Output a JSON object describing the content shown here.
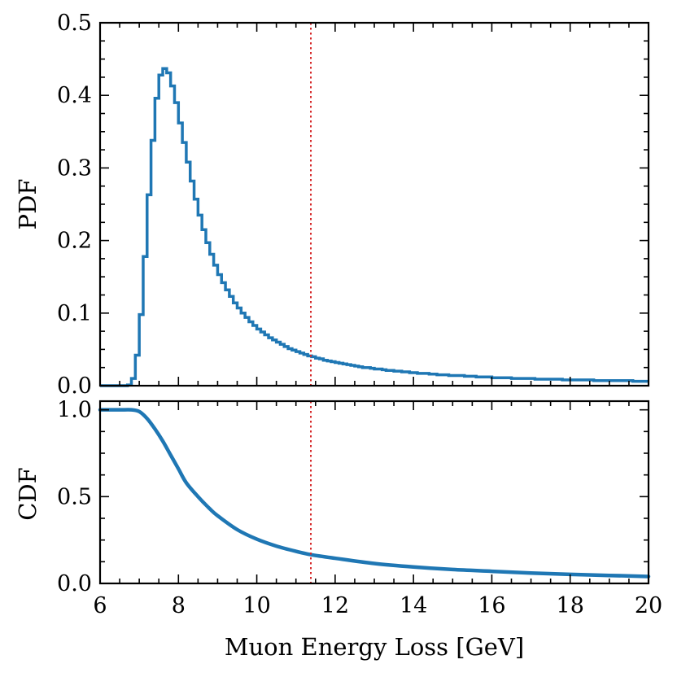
{
  "colors": {
    "series": "#1f77b4",
    "marker_line": "#d62728",
    "axes": "#000000"
  },
  "chart_data": [
    {
      "type": "line",
      "title": "",
      "xlabel": "",
      "ylabel": "PDF",
      "xlim": [
        6,
        20
      ],
      "ylim": [
        0,
        0.5
      ],
      "yticks": [
        0.0,
        0.1,
        0.2,
        0.3,
        0.4,
        0.5
      ],
      "ytick_labels": [
        "0.0",
        "0.1",
        "0.2",
        "0.3",
        "0.4",
        "0.5"
      ],
      "series": [
        {
          "name": "PDF",
          "style": "step",
          "bin_edges_start": 6.0,
          "bin_width": 0.1,
          "values": [
            0,
            0,
            0,
            0,
            0,
            0,
            0,
            0.001,
            0.01,
            0.042,
            0.098,
            0.178,
            0.263,
            0.338,
            0.396,
            0.428,
            0.437,
            0.431,
            0.413,
            0.39,
            0.362,
            0.335,
            0.308,
            0.282,
            0.257,
            0.235,
            0.215,
            0.197,
            0.181,
            0.166,
            0.153,
            0.142,
            0.132,
            0.123,
            0.114,
            0.107,
            0.1,
            0.094,
            0.088,
            0.083,
            0.078,
            0.074,
            0.07,
            0.066,
            0.063,
            0.06,
            0.057,
            0.054,
            0.051,
            0.049,
            0.047,
            0.045,
            0.043,
            0.041,
            0.04,
            0.038,
            0.037,
            0.035,
            0.034,
            0.033,
            0.032,
            0.031,
            0.03,
            0.029,
            0.028,
            0.027,
            0.026,
            0.025,
            0.025,
            0.024,
            0.023,
            0.023,
            0.022,
            0.021,
            0.021,
            0.02,
            0.02,
            0.019,
            0.019,
            0.018,
            0.018,
            0.017,
            0.017,
            0.017,
            0.016,
            0.016,
            0.015,
            0.015,
            0.015,
            0.014,
            0.014,
            0.014,
            0.014,
            0.013,
            0.013,
            0.013,
            0.012,
            0.012,
            0.012,
            0.012,
            0.011,
            0.011,
            0.011,
            0.011,
            0.011,
            0.01,
            0.01,
            0.01,
            0.01,
            0.01,
            0.01,
            0.009,
            0.009,
            0.009,
            0.009,
            0.009,
            0.009,
            0.009,
            0.008,
            0.008,
            0.008,
            0.008,
            0.008,
            0.008,
            0.008,
            0.008,
            0.007,
            0.007,
            0.007,
            0.007,
            0.007,
            0.007,
            0.007,
            0.007,
            0.007,
            0.007,
            0.006,
            0.006,
            0.006,
            0.006
          ]
        }
      ],
      "vline_x": 11.38
    },
    {
      "type": "line",
      "title": "",
      "xlabel": "Muon Energy Loss [GeV]",
      "ylabel": "CDF",
      "xlim": [
        6,
        20
      ],
      "ylim": [
        0,
        1.05
      ],
      "xticks": [
        6,
        8,
        10,
        12,
        14,
        16,
        18,
        20
      ],
      "xtick_labels": [
        "6",
        "8",
        "10",
        "12",
        "14",
        "16",
        "18",
        "20"
      ],
      "yticks": [
        0.0,
        0.5,
        1.0
      ],
      "ytick_labels": [
        "0.0",
        "0.5",
        "1.0"
      ],
      "series": [
        {
          "name": "CDF",
          "x": [
            6.0,
            6.5,
            6.8,
            7.0,
            7.2,
            7.4,
            7.6,
            7.8,
            8.0,
            8.2,
            8.5,
            8.8,
            9.0,
            9.5,
            10.0,
            10.5,
            11.0,
            11.4,
            12.0,
            13.0,
            14.0,
            15.0,
            16.0,
            17.0,
            18.0,
            19.0,
            20.0
          ],
          "y": [
            1.0,
            1.0,
            1.0,
            0.99,
            0.95,
            0.89,
            0.82,
            0.74,
            0.66,
            0.58,
            0.5,
            0.43,
            0.39,
            0.31,
            0.255,
            0.215,
            0.185,
            0.165,
            0.145,
            0.115,
            0.095,
            0.08,
            0.07,
            0.06,
            0.052,
            0.046,
            0.04
          ]
        }
      ],
      "vline_x": 11.38
    }
  ]
}
